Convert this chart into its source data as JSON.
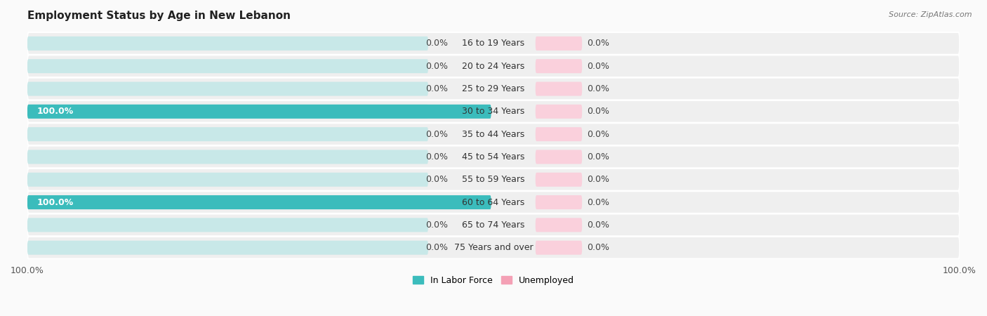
{
  "title": "Employment Status by Age in New Lebanon",
  "source": "Source: ZipAtlas.com",
  "age_groups": [
    "16 to 19 Years",
    "20 to 24 Years",
    "25 to 29 Years",
    "30 to 34 Years",
    "35 to 44 Years",
    "45 to 54 Years",
    "55 to 59 Years",
    "60 to 64 Years",
    "65 to 74 Years",
    "75 Years and over"
  ],
  "labor_force": [
    0.0,
    0.0,
    0.0,
    100.0,
    0.0,
    0.0,
    0.0,
    100.0,
    0.0,
    0.0
  ],
  "unemployed": [
    0.0,
    0.0,
    0.0,
    0.0,
    0.0,
    0.0,
    0.0,
    0.0,
    0.0,
    0.0
  ],
  "labor_force_color": "#3BBCBC",
  "unemployed_color": "#F4A0B5",
  "bar_bg_left_color": "#C8E8E8",
  "bar_bg_right_color": "#FAD0DC",
  "row_bg_color": "#EFEFEF",
  "row_border_color": "#FFFFFF",
  "title_fontsize": 11,
  "label_fontsize": 9,
  "legend_fontsize": 9,
  "figsize": [
    14.06,
    4.5
  ],
  "dpi": 100,
  "stub_size": 5.0,
  "full_bar_pct": 100.0
}
